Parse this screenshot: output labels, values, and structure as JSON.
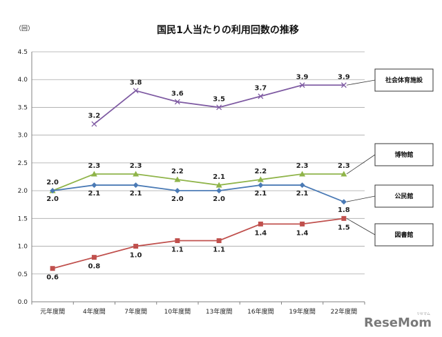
{
  "chart_data": {
    "type": "line",
    "title": "国民1人当たりの利用回数の推移",
    "unit_label": "（回）",
    "ylim": [
      0,
      4.5
    ],
    "y_ticks": [
      "0.0",
      "0.5",
      "1.0",
      "1.5",
      "2.0",
      "2.5",
      "3.0",
      "3.5",
      "4.0",
      "4.5"
    ],
    "categories": [
      "元年度間",
      "4年度間",
      "7年度間",
      "10年度間",
      "13年度間",
      "16年度間",
      "19年度間",
      "22年度間"
    ],
    "grid": "horizontal",
    "series": [
      {
        "name": "社会体育施設",
        "color": "#7e5aa2",
        "marker": "x",
        "values": [
          null,
          3.2,
          3.8,
          3.6,
          3.5,
          3.7,
          3.9,
          3.9
        ],
        "labels": [
          "",
          "3.2",
          "3.8",
          "3.6",
          "3.5",
          "3.7",
          "3.9",
          "3.9"
        ]
      },
      {
        "name": "博物館",
        "color": "#8fb449",
        "marker": "triangle",
        "values": [
          2.0,
          2.3,
          2.3,
          2.2,
          2.1,
          2.2,
          2.3,
          2.3
        ],
        "labels": [
          "2.0",
          "2.3",
          "2.3",
          "2.2",
          "2.1",
          "2.2",
          "2.3",
          "2.3"
        ]
      },
      {
        "name": "公民館",
        "color": "#4a7ab5",
        "marker": "diamond",
        "values": [
          2.0,
          2.1,
          2.1,
          2.0,
          2.0,
          2.1,
          2.1,
          1.8
        ],
        "labels": [
          "2.0",
          "2.1",
          "2.1",
          "2.0",
          "2.0",
          "2.1",
          "2.1",
          "1.8"
        ]
      },
      {
        "name": "図書館",
        "color": "#c0504d",
        "marker": "square",
        "values": [
          0.6,
          0.8,
          1.0,
          1.1,
          1.1,
          1.4,
          1.4,
          1.5
        ],
        "labels": [
          "0.6",
          "0.8",
          "1.0",
          "1.1",
          "1.1",
          "1.4",
          "1.4",
          "1.5"
        ]
      }
    ]
  },
  "watermark": {
    "text": "ReseMom",
    "small_text": "リセマム"
  }
}
